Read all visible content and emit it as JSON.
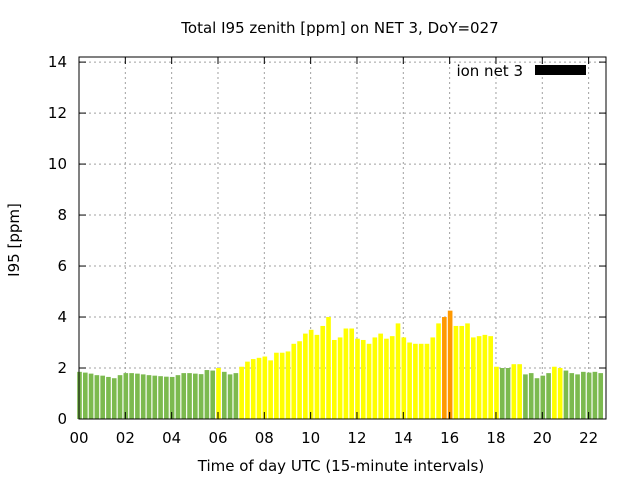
{
  "chart_data": {
    "type": "bar",
    "title": "Total I95 zenith [ppm] on NET 3, DoY=027",
    "xlabel": "Time of day UTC (15-minute intervals)",
    "ylabel": "I95 [ppm]",
    "xlim": [
      0,
      22.75
    ],
    "ylim": [
      0,
      14.2
    ],
    "xticks": [
      "00",
      "02",
      "04",
      "06",
      "08",
      "10",
      "12",
      "14",
      "16",
      "18",
      "20",
      "22"
    ],
    "yticks": [
      "0",
      "2",
      "4",
      "6",
      "8",
      "10",
      "12",
      "14"
    ],
    "grid": true,
    "legend": {
      "label": "ion net 3",
      "color": "#000000",
      "position": "top-right"
    },
    "bar_interval_hours": 0.25,
    "x": [
      0,
      0.25,
      0.5,
      0.75,
      1,
      1.25,
      1.5,
      1.75,
      2,
      2.25,
      2.5,
      2.75,
      3,
      3.25,
      3.5,
      3.75,
      4,
      4.25,
      4.5,
      4.75,
      5,
      5.25,
      5.5,
      5.75,
      6,
      6.25,
      6.5,
      6.75,
      7,
      7.25,
      7.5,
      7.75,
      8,
      8.25,
      8.5,
      8.75,
      9,
      9.25,
      9.5,
      9.75,
      10,
      10.25,
      10.5,
      10.75,
      11,
      11.25,
      11.5,
      11.75,
      12,
      12.25,
      12.5,
      12.75,
      13,
      13.25,
      13.5,
      13.75,
      14,
      14.25,
      14.5,
      14.75,
      15,
      15.25,
      15.5,
      15.75,
      16,
      16.25,
      16.5,
      16.75,
      17,
      17.25,
      17.5,
      17.75,
      18,
      18.25,
      18.5,
      18.75,
      19,
      19.25,
      19.5,
      19.75,
      20,
      20.25,
      20.5,
      20.75,
      21,
      21.25,
      21.5,
      21.75,
      22,
      22.25,
      22.5
    ],
    "values": [
      1.85,
      1.82,
      1.78,
      1.72,
      1.7,
      1.65,
      1.6,
      1.72,
      1.8,
      1.8,
      1.78,
      1.75,
      1.72,
      1.7,
      1.68,
      1.66,
      1.65,
      1.72,
      1.8,
      1.8,
      1.78,
      1.76,
      1.92,
      1.9,
      2.0,
      1.85,
      1.75,
      1.8,
      2.05,
      2.25,
      2.35,
      2.4,
      2.45,
      2.3,
      2.6,
      2.6,
      2.65,
      2.95,
      3.05,
      3.35,
      3.5,
      3.3,
      3.65,
      4.0,
      3.1,
      3.2,
      3.55,
      3.55,
      3.15,
      3.1,
      2.95,
      3.2,
      3.35,
      3.15,
      3.25,
      3.75,
      3.2,
      3.0,
      2.95,
      2.95,
      2.95,
      3.2,
      3.75,
      4.0,
      4.25,
      3.65,
      3.65,
      3.75,
      3.2,
      3.25,
      3.3,
      3.25,
      2.05,
      2.0,
      2.0,
      2.15,
      2.15,
      1.75,
      1.8,
      1.6,
      1.7,
      1.8,
      2.05,
      2.0,
      1.9,
      1.8,
      1.75,
      1.85,
      1.82,
      1.85,
      1.8
    ],
    "bar_colors": [
      "#7cba4f",
      "#7cba4f",
      "#7cba4f",
      "#7cba4f",
      "#7cba4f",
      "#7cba4f",
      "#7cba4f",
      "#7cba4f",
      "#7cba4f",
      "#7cba4f",
      "#7cba4f",
      "#7cba4f",
      "#7cba4f",
      "#7cba4f",
      "#7cba4f",
      "#7cba4f",
      "#7cba4f",
      "#7cba4f",
      "#7cba4f",
      "#7cba4f",
      "#7cba4f",
      "#7cba4f",
      "#7cba4f",
      "#7cba4f",
      "#ffff00",
      "#7cba4f",
      "#7cba4f",
      "#7cba4f",
      "#ffff00",
      "#ffff00",
      "#ffff00",
      "#ffff00",
      "#ffff00",
      "#ffff00",
      "#ffff00",
      "#ffff00",
      "#ffff00",
      "#ffff00",
      "#ffff00",
      "#ffff00",
      "#ffff00",
      "#ffff00",
      "#ffff00",
      "#ffff00",
      "#ffff00",
      "#ffff00",
      "#ffff00",
      "#ffff00",
      "#ffff00",
      "#ffff00",
      "#ffff00",
      "#ffff00",
      "#ffff00",
      "#ffff00",
      "#ffff00",
      "#ffff00",
      "#ffff00",
      "#ffff00",
      "#ffff00",
      "#ffff00",
      "#ffff00",
      "#ffff00",
      "#ffff00",
      "#ff9900",
      "#ff9900",
      "#ffff00",
      "#ffff00",
      "#ffff00",
      "#ffff00",
      "#ffff00",
      "#ffff00",
      "#ffff00",
      "#ffff00",
      "#7cba4f",
      "#7cba4f",
      "#ffff00",
      "#ffff00",
      "#7cba4f",
      "#7cba4f",
      "#7cba4f",
      "#7cba4f",
      "#7cba4f",
      "#ffff00",
      "#ffff00",
      "#7cba4f",
      "#7cba4f",
      "#7cba4f",
      "#7cba4f",
      "#7cba4f",
      "#7cba4f",
      "#7cba4f"
    ]
  }
}
